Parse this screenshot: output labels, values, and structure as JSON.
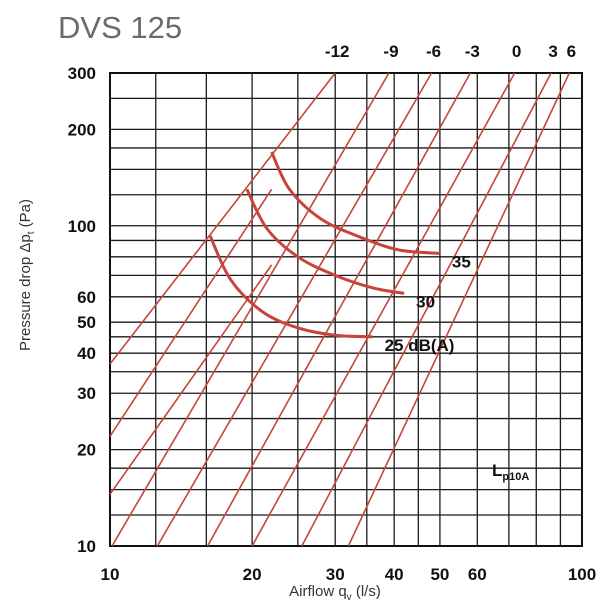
{
  "chart_data": {
    "type": "line",
    "title": "DVS 125",
    "xlabel_main": "Airflow q",
    "xlabel_sub": "v",
    "xlabel_unit": " (l/s)",
    "ylabel_main": "Pressure drop Δp",
    "ylabel_sub": "t",
    "ylabel_unit": " (Pa)",
    "x_scale": "log",
    "y_scale": "log",
    "xlim": [
      10,
      100
    ],
    "ylim": [
      10,
      300
    ],
    "grid": true,
    "x_tick_labels": [
      "10",
      "20",
      "30",
      "40",
      "50",
      "60",
      "100"
    ],
    "x_tick_values": [
      10,
      20,
      30,
      40,
      50,
      60,
      100
    ],
    "x_grid_values": [
      10,
      12.5,
      16,
      20,
      25,
      30,
      35,
      40,
      45,
      50,
      60,
      70,
      80,
      90,
      100
    ],
    "y_tick_labels": [
      "10",
      "20",
      "30",
      "40",
      "50",
      "60",
      "100",
      "200",
      "300"
    ],
    "y_tick_values": [
      10,
      20,
      30,
      40,
      50,
      60,
      100,
      200,
      300
    ],
    "y_grid_values": [
      10,
      12.5,
      15,
      17.5,
      20,
      25,
      30,
      35,
      40,
      45,
      50,
      60,
      70,
      80,
      90,
      100,
      125,
      150,
      175,
      200,
      250,
      300
    ],
    "setting_lines": [
      {
        "name": "-12",
        "points": [
          [
            10,
            37
          ],
          [
            30,
            300
          ]
        ]
      },
      {
        "name": "-9",
        "points": [
          [
            10.1,
            10
          ],
          [
            39,
            300
          ]
        ]
      },
      {
        "name": "-6",
        "points": [
          [
            12.6,
            10
          ],
          [
            48,
            300
          ]
        ]
      },
      {
        "name": "-3",
        "points": [
          [
            16.1,
            10
          ],
          [
            58,
            300
          ]
        ]
      },
      {
        "name": "0",
        "points": [
          [
            20,
            10
          ],
          [
            72,
            300
          ]
        ]
      },
      {
        "name": "3",
        "points": [
          [
            25.5,
            10
          ],
          [
            86,
            300
          ]
        ]
      },
      {
        "name": "6",
        "points": [
          [
            32,
            10
          ],
          [
            94,
            300
          ]
        ]
      }
    ],
    "extra_setting_lines": [
      {
        "points": [
          [
            10,
            14.5
          ],
          [
            22,
            75.5
          ]
        ]
      },
      {
        "points": [
          [
            10,
            22
          ],
          [
            22,
            130
          ]
        ]
      }
    ],
    "sound_curves": [
      {
        "name": "25 dB(A)",
        "label": "25 dB(A)",
        "points": [
          [
            16.3,
            93
          ],
          [
            18,
            68
          ],
          [
            21,
            54
          ],
          [
            25,
            48
          ],
          [
            30,
            45.5
          ],
          [
            36,
            45
          ]
        ]
      },
      {
        "name": "30",
        "label": "30",
        "points": [
          [
            19.5,
            130
          ],
          [
            21.5,
            98
          ],
          [
            25,
            80
          ],
          [
            30,
            70
          ],
          [
            36,
            64
          ],
          [
            42,
            61.5
          ]
        ]
      },
      {
        "name": "35",
        "label": "35",
        "points": [
          [
            22,
            170
          ],
          [
            24,
            130
          ],
          [
            28,
            105
          ],
          [
            34,
            92
          ],
          [
            41,
            84
          ],
          [
            50,
            82
          ]
        ]
      }
    ],
    "legend_main": "L",
    "legend_sub": "p10A"
  }
}
